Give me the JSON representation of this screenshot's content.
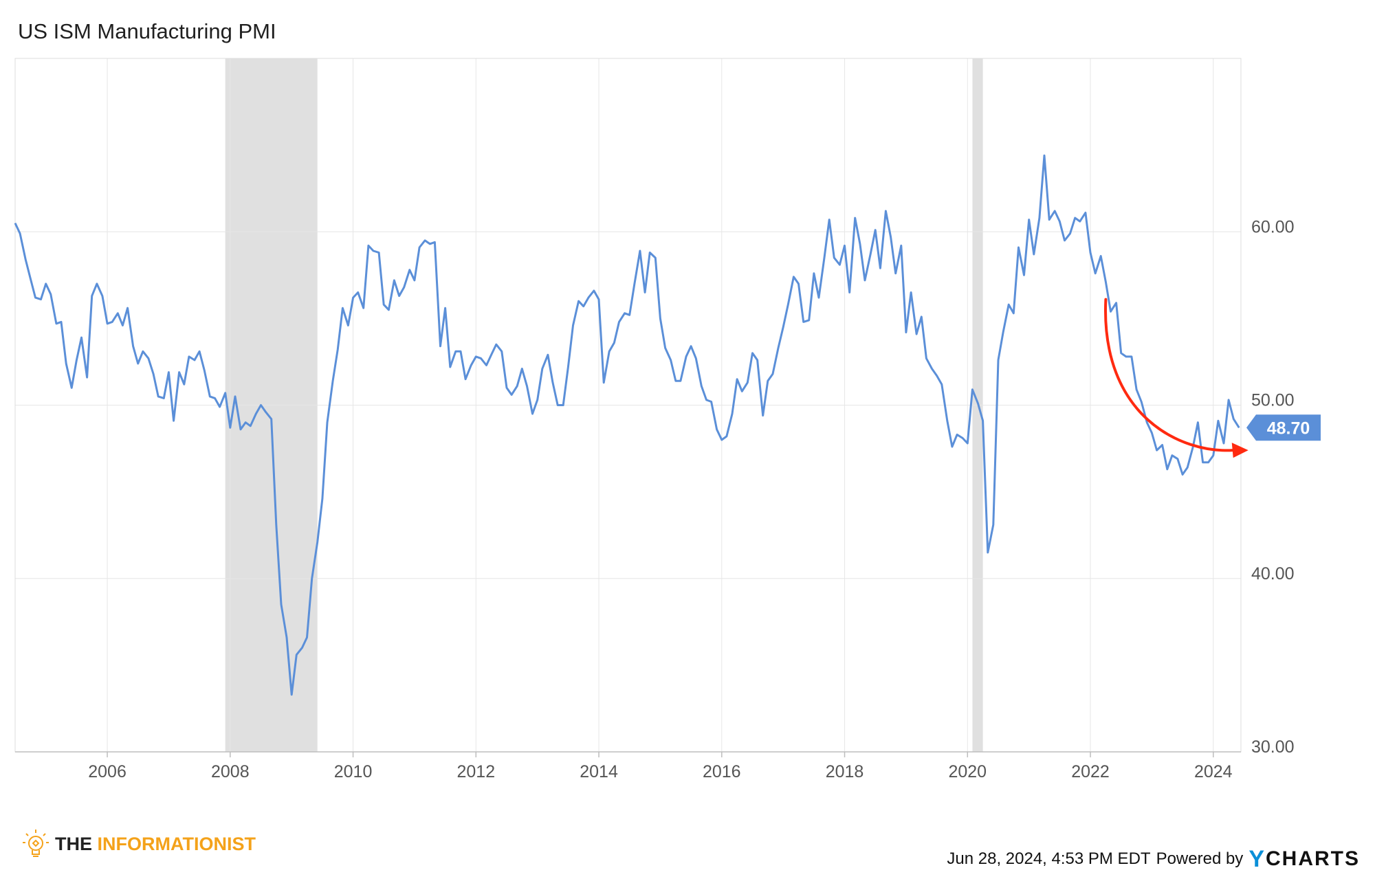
{
  "title": "US ISM Manufacturing PMI",
  "colors": {
    "line": "#5b8fd8",
    "recession": "#e0e0e0",
    "grid": "#e6e6e6",
    "annotation": "#ff2a10",
    "label_bg": "#5b8fd8"
  },
  "last_value_label": "48.70",
  "footer": {
    "brand_the": "THE",
    "brand_name": "INFORMATIONIST",
    "timestamp": "Jun 28, 2024, 4:53 PM EDT",
    "powered_by": "Powered by",
    "ycharts": "CHARTS",
    "ycharts_y": "Y"
  },
  "icons": {
    "brand": "lightbulb-icon"
  },
  "chart_data": {
    "type": "line",
    "title": "US ISM Manufacturing PMI",
    "xlabel": "",
    "ylabel": "",
    "xlim": [
      2004.5,
      2024.45
    ],
    "ylim": [
      30,
      70
    ],
    "y_ticks": [
      30,
      40,
      50,
      60
    ],
    "y_tick_labels": [
      "30.00",
      "40.00",
      "50.00",
      "60.00"
    ],
    "x_ticks": [
      2006,
      2008,
      2010,
      2012,
      2014,
      2016,
      2018,
      2020,
      2022,
      2024
    ],
    "x_tick_labels": [
      "2006",
      "2008",
      "2010",
      "2012",
      "2014",
      "2016",
      "2018",
      "2020",
      "2022",
      "2024"
    ],
    "grid": true,
    "axis_side": "right",
    "recessions": [
      [
        2007.92,
        2009.42
      ],
      [
        2020.08,
        2020.25
      ]
    ],
    "annotation": "curved red arrow from early 2022 down to current level",
    "series": [
      {
        "x": [
          2004.5,
          2004.58,
          2004.67,
          2004.75,
          2004.83,
          2004.92,
          2005.0,
          2005.08,
          2005.17,
          2005.25,
          2005.33,
          2005.42,
          2005.5,
          2005.58,
          2005.67,
          2005.75,
          2005.83,
          2005.92,
          2006.0,
          2006.08,
          2006.17,
          2006.25,
          2006.33,
          2006.42,
          2006.5,
          2006.58,
          2006.67,
          2006.75,
          2006.83,
          2006.92,
          2007.0,
          2007.08,
          2007.17,
          2007.25,
          2007.33,
          2007.42,
          2007.5,
          2007.58,
          2007.67,
          2007.75,
          2007.83,
          2007.92,
          2008.0,
          2008.08,
          2008.17,
          2008.25,
          2008.33,
          2008.42,
          2008.5,
          2008.58,
          2008.67,
          2008.75,
          2008.83,
          2008.92,
          2009.0,
          2009.08,
          2009.17,
          2009.25,
          2009.33,
          2009.42,
          2009.5,
          2009.58,
          2009.67,
          2009.75,
          2009.83,
          2009.92,
          2010.0,
          2010.08,
          2010.17,
          2010.25,
          2010.33,
          2010.42,
          2010.5,
          2010.58,
          2010.67,
          2010.75,
          2010.83,
          2010.92,
          2011.0,
          2011.08,
          2011.17,
          2011.25,
          2011.33,
          2011.42,
          2011.5,
          2011.58,
          2011.67,
          2011.75,
          2011.83,
          2011.92,
          2012.0,
          2012.08,
          2012.17,
          2012.25,
          2012.33,
          2012.42,
          2012.5,
          2012.58,
          2012.67,
          2012.75,
          2012.83,
          2012.92,
          2013.0,
          2013.08,
          2013.17,
          2013.25,
          2013.33,
          2013.42,
          2013.5,
          2013.58,
          2013.67,
          2013.75,
          2013.83,
          2013.92,
          2014.0,
          2014.08,
          2014.17,
          2014.25,
          2014.33,
          2014.42,
          2014.5,
          2014.58,
          2014.67,
          2014.75,
          2014.83,
          2014.92,
          2015.0,
          2015.08,
          2015.17,
          2015.25,
          2015.33,
          2015.42,
          2015.5,
          2015.58,
          2015.67,
          2015.75,
          2015.83,
          2015.92,
          2016.0,
          2016.08,
          2016.17,
          2016.25,
          2016.33,
          2016.42,
          2016.5,
          2016.58,
          2016.67,
          2016.75,
          2016.83,
          2016.92,
          2017.0,
          2017.08,
          2017.17,
          2017.25,
          2017.33,
          2017.42,
          2017.5,
          2017.58,
          2017.67,
          2017.75,
          2017.83,
          2017.92,
          2018.0,
          2018.08,
          2018.17,
          2018.25,
          2018.33,
          2018.42,
          2018.5,
          2018.58,
          2018.67,
          2018.75,
          2018.83,
          2018.92,
          2019.0,
          2019.08,
          2019.17,
          2019.25,
          2019.33,
          2019.42,
          2019.5,
          2019.58,
          2019.67,
          2019.75,
          2019.83,
          2019.92,
          2020.0,
          2020.08,
          2020.17,
          2020.25,
          2020.33,
          2020.42,
          2020.5,
          2020.58,
          2020.67,
          2020.75,
          2020.83,
          2020.92,
          2021.0,
          2021.08,
          2021.17,
          2021.25,
          2021.33,
          2021.42,
          2021.5,
          2021.58,
          2021.67,
          2021.75,
          2021.83,
          2021.92,
          2022.0,
          2022.08,
          2022.17,
          2022.25,
          2022.33,
          2022.42,
          2022.5,
          2022.58,
          2022.67,
          2022.75,
          2022.83,
          2022.92,
          2023.0,
          2023.08,
          2023.17,
          2023.25,
          2023.33,
          2023.42,
          2023.5,
          2023.58,
          2023.67,
          2023.75,
          2023.83,
          2023.92,
          2024.0,
          2024.08,
          2024.17,
          2024.25,
          2024.33,
          2024.42
        ],
        "values": [
          60.5,
          59.9,
          58.4,
          57.3,
          56.2,
          56.1,
          57.0,
          56.4,
          54.7,
          54.8,
          52.4,
          51.0,
          52.6,
          53.9,
          51.6,
          56.3,
          57.0,
          56.3,
          54.7,
          54.8,
          55.3,
          54.6,
          55.6,
          53.4,
          52.4,
          53.1,
          52.7,
          51.8,
          50.5,
          50.4,
          51.9,
          49.1,
          51.9,
          51.2,
          52.8,
          52.6,
          53.1,
          52.0,
          50.5,
          50.4,
          49.9,
          50.7,
          48.7,
          50.5,
          48.6,
          49.0,
          48.8,
          49.5,
          50.0,
          49.6,
          49.2,
          43.1,
          38.5,
          36.6,
          33.3,
          35.6,
          36.0,
          36.6,
          40.0,
          42.1,
          44.6,
          49.0,
          51.4,
          53.2,
          55.6,
          54.6,
          56.2,
          56.5,
          55.6,
          59.2,
          58.9,
          58.8,
          55.8,
          55.5,
          57.2,
          56.3,
          56.8,
          57.8,
          57.2,
          59.1,
          59.5,
          59.3,
          59.4,
          53.4,
          55.6,
          52.2,
          53.1,
          53.1,
          51.5,
          52.3,
          52.8,
          52.7,
          52.3,
          52.9,
          53.5,
          53.1,
          51.0,
          50.6,
          51.1,
          52.1,
          51.1,
          49.5,
          50.3,
          52.1,
          52.9,
          51.3,
          50.0,
          50.0,
          52.2,
          54.6,
          56.0,
          55.7,
          56.2,
          56.6,
          56.1,
          51.3,
          53.1,
          53.6,
          54.8,
          55.3,
          55.2,
          57.0,
          58.9,
          56.5,
          58.8,
          58.5,
          55.0,
          53.3,
          52.6,
          51.4,
          51.4,
          52.8,
          53.4,
          52.7,
          51.1,
          50.3,
          50.2,
          48.6,
          48.0,
          48.2,
          49.5,
          51.5,
          50.8,
          51.3,
          53.0,
          52.6,
          49.4,
          51.4,
          51.8,
          53.3,
          54.5,
          55.8,
          57.4,
          57.0,
          54.8,
          54.9,
          57.6,
          56.2,
          58.5,
          60.7,
          58.5,
          58.1,
          59.2,
          56.5,
          60.8,
          59.3,
          57.2,
          58.7,
          60.1,
          57.9,
          61.2,
          59.7,
          57.6,
          59.2,
          54.2,
          56.5,
          54.1,
          55.1,
          52.7,
          52.1,
          51.7,
          51.2,
          49.1,
          47.6,
          48.3,
          48.1,
          47.8,
          50.9,
          50.1,
          49.1,
          41.5,
          43.1,
          52.6,
          54.2,
          55.8,
          55.3,
          59.1,
          57.5,
          60.7,
          58.7,
          60.8,
          64.4,
          60.7,
          61.2,
          60.6,
          59.5,
          59.9,
          60.8,
          60.6,
          61.1,
          58.8,
          57.6,
          58.6,
          57.1,
          55.4,
          55.9,
          53.0,
          52.8,
          52.8,
          50.9,
          50.2,
          49.0,
          48.4,
          47.4,
          47.7,
          46.3,
          47.1,
          46.9,
          46.0,
          46.4,
          47.6,
          49.0,
          46.7,
          46.7,
          47.1,
          49.1,
          47.8,
          50.3,
          49.2,
          48.7
        ]
      }
    ]
  }
}
